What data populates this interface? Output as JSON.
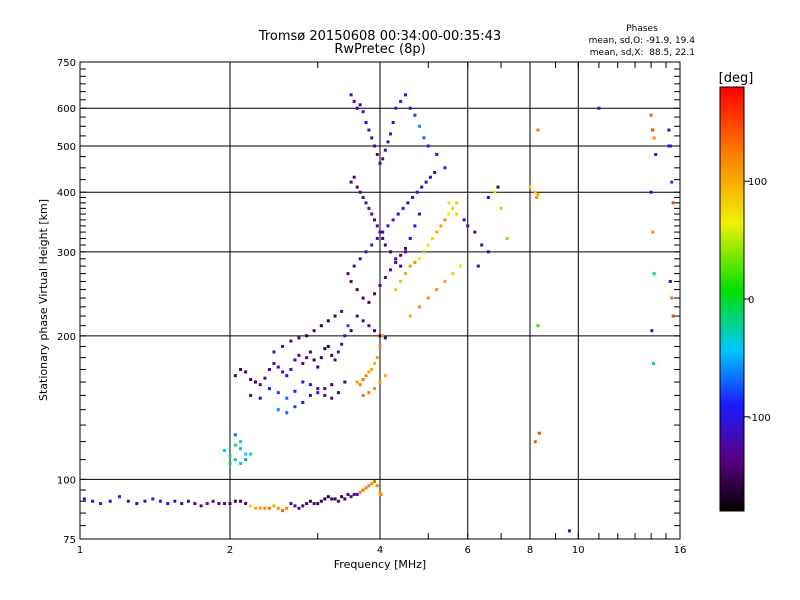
{
  "chart_data": {
    "type": "scatter",
    "title": "Tromsø 20150608 00:34:00-00:35:43",
    "subtitle": "RwPretec (8p)",
    "xlabel": "Frequency [MHz]",
    "ylabel": "Stationary phase Virtual Height [km]",
    "x_scale": "log",
    "y_scale": "log",
    "xlim": [
      1,
      16
    ],
    "ylim": [
      75,
      750
    ],
    "x_ticks": [
      1,
      2,
      4,
      6,
      8,
      10,
      16
    ],
    "x_tick_labels": [
      "1",
      "2",
      "4",
      "6",
      "8",
      "10",
      "16"
    ],
    "y_ticks": [
      75,
      100,
      200,
      300,
      400,
      500,
      600,
      750
    ],
    "y_tick_labels": [
      "75",
      "100",
      "200",
      "300",
      "400",
      "500",
      "600",
      "750"
    ],
    "grid": true,
    "phase_info": {
      "title": "Phases",
      "line_o": "mean, sd,O: -91.9, 19.4",
      "line_x": "mean, sd,X:  88.5, 22.1"
    },
    "colorbar": {
      "label": "[deg]",
      "range": [
        -180,
        180
      ],
      "ticks": [
        100,
        0,
        -100
      ],
      "tick_labels": [
        "100",
        "0",
        "-100"
      ]
    },
    "series": [
      {
        "x": [
          1.02,
          1.06,
          1.1,
          1.15,
          1.2,
          1.25,
          1.3,
          1.35,
          1.4,
          1.45,
          1.5,
          1.55,
          1.6,
          1.65,
          1.7,
          1.75,
          1.8,
          1.85,
          1.9,
          1.95,
          2.0,
          2.05,
          2.1,
          2.15,
          2.2,
          2.25,
          2.3,
          2.35,
          2.4,
          2.45,
          2.5,
          2.55,
          2.6,
          2.65,
          2.7,
          2.75,
          2.8,
          2.85,
          2.9,
          2.95,
          3.0,
          3.05,
          3.1,
          3.15,
          3.2,
          3.25,
          3.3,
          3.35,
          3.4,
          3.45,
          3.5,
          3.55,
          3.6,
          3.65,
          3.7,
          3.75,
          3.8,
          3.85,
          3.9,
          3.95,
          4.0,
          4.02
        ],
        "y": [
          91,
          90,
          89,
          90,
          92,
          90,
          89,
          90,
          91,
          90,
          89,
          90,
          89,
          90,
          89,
          88,
          89,
          90,
          89,
          89,
          89,
          90,
          90,
          89,
          88,
          87,
          87,
          87,
          87,
          88,
          87,
          86,
          87,
          89,
          88,
          87,
          88,
          89,
          90,
          89,
          89,
          90,
          91,
          92,
          91,
          91,
          90,
          92,
          91,
          93,
          92,
          93,
          93,
          94,
          95,
          96,
          97,
          98,
          99,
          97,
          94,
          93
        ],
        "phase": [
          -120,
          -110,
          -100,
          -115,
          -95,
          -110,
          -120,
          -105,
          -110,
          -90,
          -100,
          -110,
          -115,
          -120,
          -130,
          -125,
          -105,
          -110,
          -135,
          -140,
          -145,
          -150,
          -150,
          -140,
          80,
          100,
          110,
          120,
          125,
          100,
          115,
          140,
          120,
          -105,
          -120,
          -130,
          -140,
          -145,
          -150,
          -130,
          -150,
          -145,
          -160,
          -160,
          -150,
          -150,
          -140,
          -155,
          -150,
          -140,
          -120,
          -130,
          -110,
          120,
          130,
          120,
          125,
          110,
          130,
          120,
          115,
          120
        ]
      },
      {
        "x": [
          1.95,
          2.0,
          2.05,
          2.1,
          2.15,
          2.2,
          2.05,
          2.1,
          2.15,
          2.1,
          2.0,
          2.05
        ],
        "y": [
          115,
          112,
          110,
          108,
          110,
          113,
          118,
          116,
          113,
          120,
          108,
          124
        ],
        "phase": [
          -40,
          -30,
          -20,
          -40,
          -60,
          -30,
          -20,
          -50,
          -40,
          -30,
          -20,
          -70
        ]
      },
      {
        "x": [
          2.05,
          2.1,
          2.15,
          2.2,
          2.25,
          2.3,
          2.35,
          2.4,
          2.45,
          2.5,
          2.55,
          2.6,
          2.65,
          2.7,
          2.75,
          2.8,
          2.85,
          2.9,
          2.95,
          3.0,
          3.05,
          3.1,
          3.15,
          3.2,
          3.25,
          3.3,
          3.35,
          3.4,
          3.45,
          3.5,
          2.2,
          2.3,
          2.4,
          2.5,
          2.6,
          2.7,
          2.8,
          2.9,
          3.0,
          3.1,
          3.2,
          3.3,
          3.4,
          2.5,
          2.6,
          2.7,
          2.8,
          2.9,
          3.0,
          3.1,
          3.2,
          2.45,
          2.55,
          2.65,
          2.75,
          2.85,
          2.95,
          3.05,
          3.15,
          3.25,
          3.35
        ],
        "y": [
          165,
          170,
          168,
          162,
          160,
          158,
          163,
          170,
          175,
          172,
          168,
          165,
          170,
          178,
          182,
          175,
          180,
          185,
          178,
          172,
          180,
          188,
          190,
          182,
          178,
          185,
          192,
          200,
          210,
          205,
          150,
          148,
          155,
          152,
          148,
          153,
          160,
          158,
          155,
          150,
          148,
          152,
          160,
          140,
          138,
          142,
          145,
          150,
          152,
          155,
          158,
          185,
          190,
          195,
          198,
          200,
          205,
          210,
          215,
          220,
          225
        ],
        "phase": [
          -145,
          -140,
          -150,
          -145,
          -150,
          -140,
          -130,
          -120,
          -110,
          -100,
          -90,
          -105,
          -110,
          -115,
          -125,
          -130,
          -135,
          -140,
          -150,
          -145,
          -150,
          -160,
          -155,
          -150,
          -140,
          -130,
          -120,
          -100,
          -80,
          -150,
          -130,
          -120,
          -100,
          -80,
          -70,
          -90,
          -100,
          -110,
          -120,
          -130,
          -140,
          -150,
          -145,
          -60,
          -70,
          -80,
          -90,
          -100,
          -120,
          -140,
          -150,
          -110,
          -120,
          -130,
          -140,
          -150,
          -145,
          -160,
          -155,
          -150,
          -130
        ]
      },
      {
        "x": [
          3.5,
          3.55,
          3.6,
          3.65,
          3.7,
          3.75,
          3.8,
          3.85,
          3.9,
          3.95,
          4.0,
          4.05,
          4.1,
          4.15,
          4.2,
          4.25,
          4.3,
          4.4,
          4.5,
          4.6,
          4.7,
          4.8,
          4.9,
          5.0,
          5.2,
          5.4,
          3.5,
          3.55,
          3.6,
          3.65,
          3.7,
          3.75,
          3.8,
          3.85,
          3.9,
          3.95,
          4.0,
          4.05,
          4.1,
          4.2,
          4.3,
          4.4,
          4.5,
          4.6,
          4.7,
          4.8,
          3.5,
          3.6,
          3.7,
          3.8,
          3.9,
          4.0,
          4.1,
          4.2,
          4.3,
          4.4,
          4.5,
          3.45,
          3.55,
          3.65,
          3.75,
          3.85,
          3.95,
          4.05,
          4.15,
          4.25,
          4.35,
          4.45,
          4.55,
          4.65,
          4.75,
          4.85,
          4.95,
          5.05,
          5.15,
          3.6,
          3.7,
          3.8,
          3.9,
          4.0,
          4.1
        ],
        "y": [
          640,
          620,
          600,
          610,
          590,
          560,
          540,
          520,
          500,
          480,
          460,
          470,
          490,
          510,
          530,
          560,
          600,
          620,
          640,
          600,
          580,
          550,
          520,
          500,
          480,
          450,
          420,
          430,
          410,
          400,
          390,
          380,
          370,
          360,
          350,
          340,
          330,
          320,
          310,
          300,
          290,
          280,
          300,
          320,
          340,
          360,
          260,
          250,
          240,
          235,
          245,
          255,
          265,
          275,
          285,
          295,
          305,
          270,
          280,
          290,
          300,
          310,
          320,
          330,
          340,
          350,
          360,
          370,
          380,
          390,
          400,
          410,
          420,
          430,
          440,
          220,
          215,
          210,
          205,
          200,
          198
        ],
        "phase": [
          -120,
          -125,
          -130,
          -115,
          -110,
          -100,
          -105,
          -110,
          -120,
          -125,
          -130,
          -135,
          -120,
          -110,
          -105,
          -100,
          -95,
          -90,
          -100,
          -110,
          -80,
          -60,
          -70,
          -90,
          -100,
          -110,
          -130,
          -135,
          -140,
          -130,
          -120,
          -110,
          -115,
          -120,
          -125,
          -130,
          -135,
          -140,
          -145,
          -140,
          -135,
          -130,
          -125,
          -120,
          -115,
          -110,
          -140,
          -145,
          -150,
          -145,
          -140,
          -135,
          -130,
          -125,
          -130,
          -135,
          -140,
          -130,
          -125,
          -120,
          -115,
          -110,
          -105,
          -100,
          -95,
          -100,
          -105,
          -110,
          -115,
          -120,
          -110,
          -100,
          -105,
          -110,
          -115,
          -125,
          -130,
          -135,
          -140,
          -145,
          -150
        ]
      },
      {
        "x": [
          3.6,
          3.65,
          3.7,
          3.75,
          3.8,
          3.85,
          3.9,
          3.95,
          4.0,
          4.05,
          3.7,
          3.8,
          3.9,
          4.0,
          4.1,
          4.3,
          4.4,
          4.5,
          4.6,
          4.7,
          4.8,
          4.9,
          5.0,
          5.1,
          5.2,
          5.3,
          5.4,
          5.5,
          5.6,
          5.7,
          4.6,
          4.8,
          5.0,
          5.2,
          5.4,
          5.6,
          5.8
        ],
        "y": [
          160,
          158,
          162,
          165,
          168,
          170,
          175,
          180,
          190,
          200,
          150,
          152,
          155,
          160,
          165,
          250,
          260,
          270,
          280,
          285,
          290,
          300,
          310,
          320,
          330,
          340,
          350,
          360,
          370,
          380,
          220,
          230,
          240,
          250,
          260,
          270,
          280
        ],
        "phase": [
          110,
          120,
          130,
          115,
          105,
          100,
          90,
          110,
          120,
          115,
          130,
          125,
          120,
          110,
          100,
          80,
          90,
          100,
          110,
          120,
          60,
          40,
          70,
          80,
          100,
          110,
          120,
          70,
          50,
          90,
          100,
          110,
          120,
          115,
          100,
          80,
          60
        ]
      },
      {
        "x": [
          5.5,
          5.7,
          5.9,
          6.0,
          6.2,
          6.4,
          6.6,
          6.8,
          7.0,
          7.2,
          6.3,
          6.6,
          6.9
        ],
        "y": [
          380,
          360,
          350,
          340,
          330,
          310,
          390,
          400,
          370,
          320,
          280,
          300,
          410
        ],
        "phase": [
          60,
          80,
          -110,
          -120,
          -130,
          -110,
          -100,
          70,
          90,
          40,
          -120,
          -140,
          -150
        ]
      },
      {
        "x": [
          8.0,
          8.2,
          8.3,
          8.25,
          8.3,
          8.3,
          8.35,
          8.2,
          9.6,
          11.0
        ],
        "y": [
          410,
          400,
          395,
          390,
          540,
          210,
          125,
          120,
          78,
          600
        ],
        "phase": [
          80,
          90,
          100,
          110,
          130,
          20,
          150,
          140,
          -110,
          -120
        ]
      },
      {
        "x": [
          14.0,
          14.1,
          14.2,
          14.3,
          14.0,
          14.1,
          14.2,
          14.05,
          14.15,
          15.2,
          15.3,
          15.4,
          15.5,
          15.3,
          15.4,
          15.5,
          15.2
        ],
        "y": [
          580,
          540,
          520,
          480,
          400,
          330,
          270,
          205,
          175,
          540,
          500,
          420,
          380,
          260,
          240,
          220,
          500
        ],
        "phase": [
          140,
          150,
          120,
          -110,
          -100,
          120,
          -20,
          -120,
          -30,
          -120,
          -110,
          -80,
          150,
          -130,
          130,
          150,
          -110
        ]
      }
    ]
  }
}
